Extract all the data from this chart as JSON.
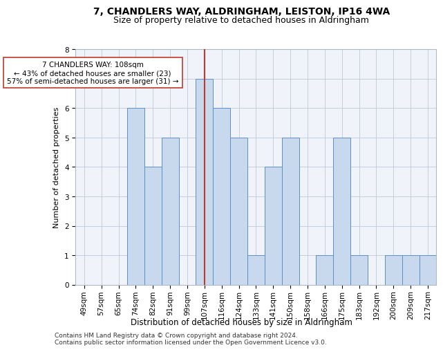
{
  "title1": "7, CHANDLERS WAY, ALDRINGHAM, LEISTON, IP16 4WA",
  "title2": "Size of property relative to detached houses in Aldringham",
  "xlabel": "Distribution of detached houses by size in Aldringham",
  "ylabel": "Number of detached properties",
  "categories": [
    "49sqm",
    "57sqm",
    "65sqm",
    "74sqm",
    "82sqm",
    "91sqm",
    "99sqm",
    "107sqm",
    "116sqm",
    "124sqm",
    "133sqm",
    "141sqm",
    "150sqm",
    "158sqm",
    "166sqm",
    "175sqm",
    "183sqm",
    "192sqm",
    "200sqm",
    "209sqm",
    "217sqm"
  ],
  "values": [
    0,
    0,
    0,
    6,
    4,
    5,
    0,
    7,
    6,
    5,
    1,
    4,
    5,
    0,
    1,
    5,
    1,
    0,
    1,
    1,
    1
  ],
  "bar_color": "#c8d9ee",
  "bar_edge_color": "#5b8fc9",
  "highlight_index": 7,
  "highlight_line_color": "#c0392b",
  "annotation_line1": "7 CHANDLERS WAY: 108sqm",
  "annotation_line2": "← 43% of detached houses are smaller (23)",
  "annotation_line3": "57% of semi-detached houses are larger (31) →",
  "annotation_box_color": "#ffffff",
  "annotation_box_edge_color": "#c0392b",
  "ylim": [
    0,
    8
  ],
  "yticks": [
    0,
    1,
    2,
    3,
    4,
    5,
    6,
    7,
    8
  ],
  "footnote": "Contains HM Land Registry data © Crown copyright and database right 2024.\nContains public sector information licensed under the Open Government Licence v3.0.",
  "title1_fontsize": 10,
  "title2_fontsize": 9,
  "xlabel_fontsize": 8.5,
  "ylabel_fontsize": 8,
  "tick_fontsize": 7.5,
  "annotation_fontsize": 7.5,
  "footnote_fontsize": 6.5,
  "bg_color": "#f0f4fa"
}
